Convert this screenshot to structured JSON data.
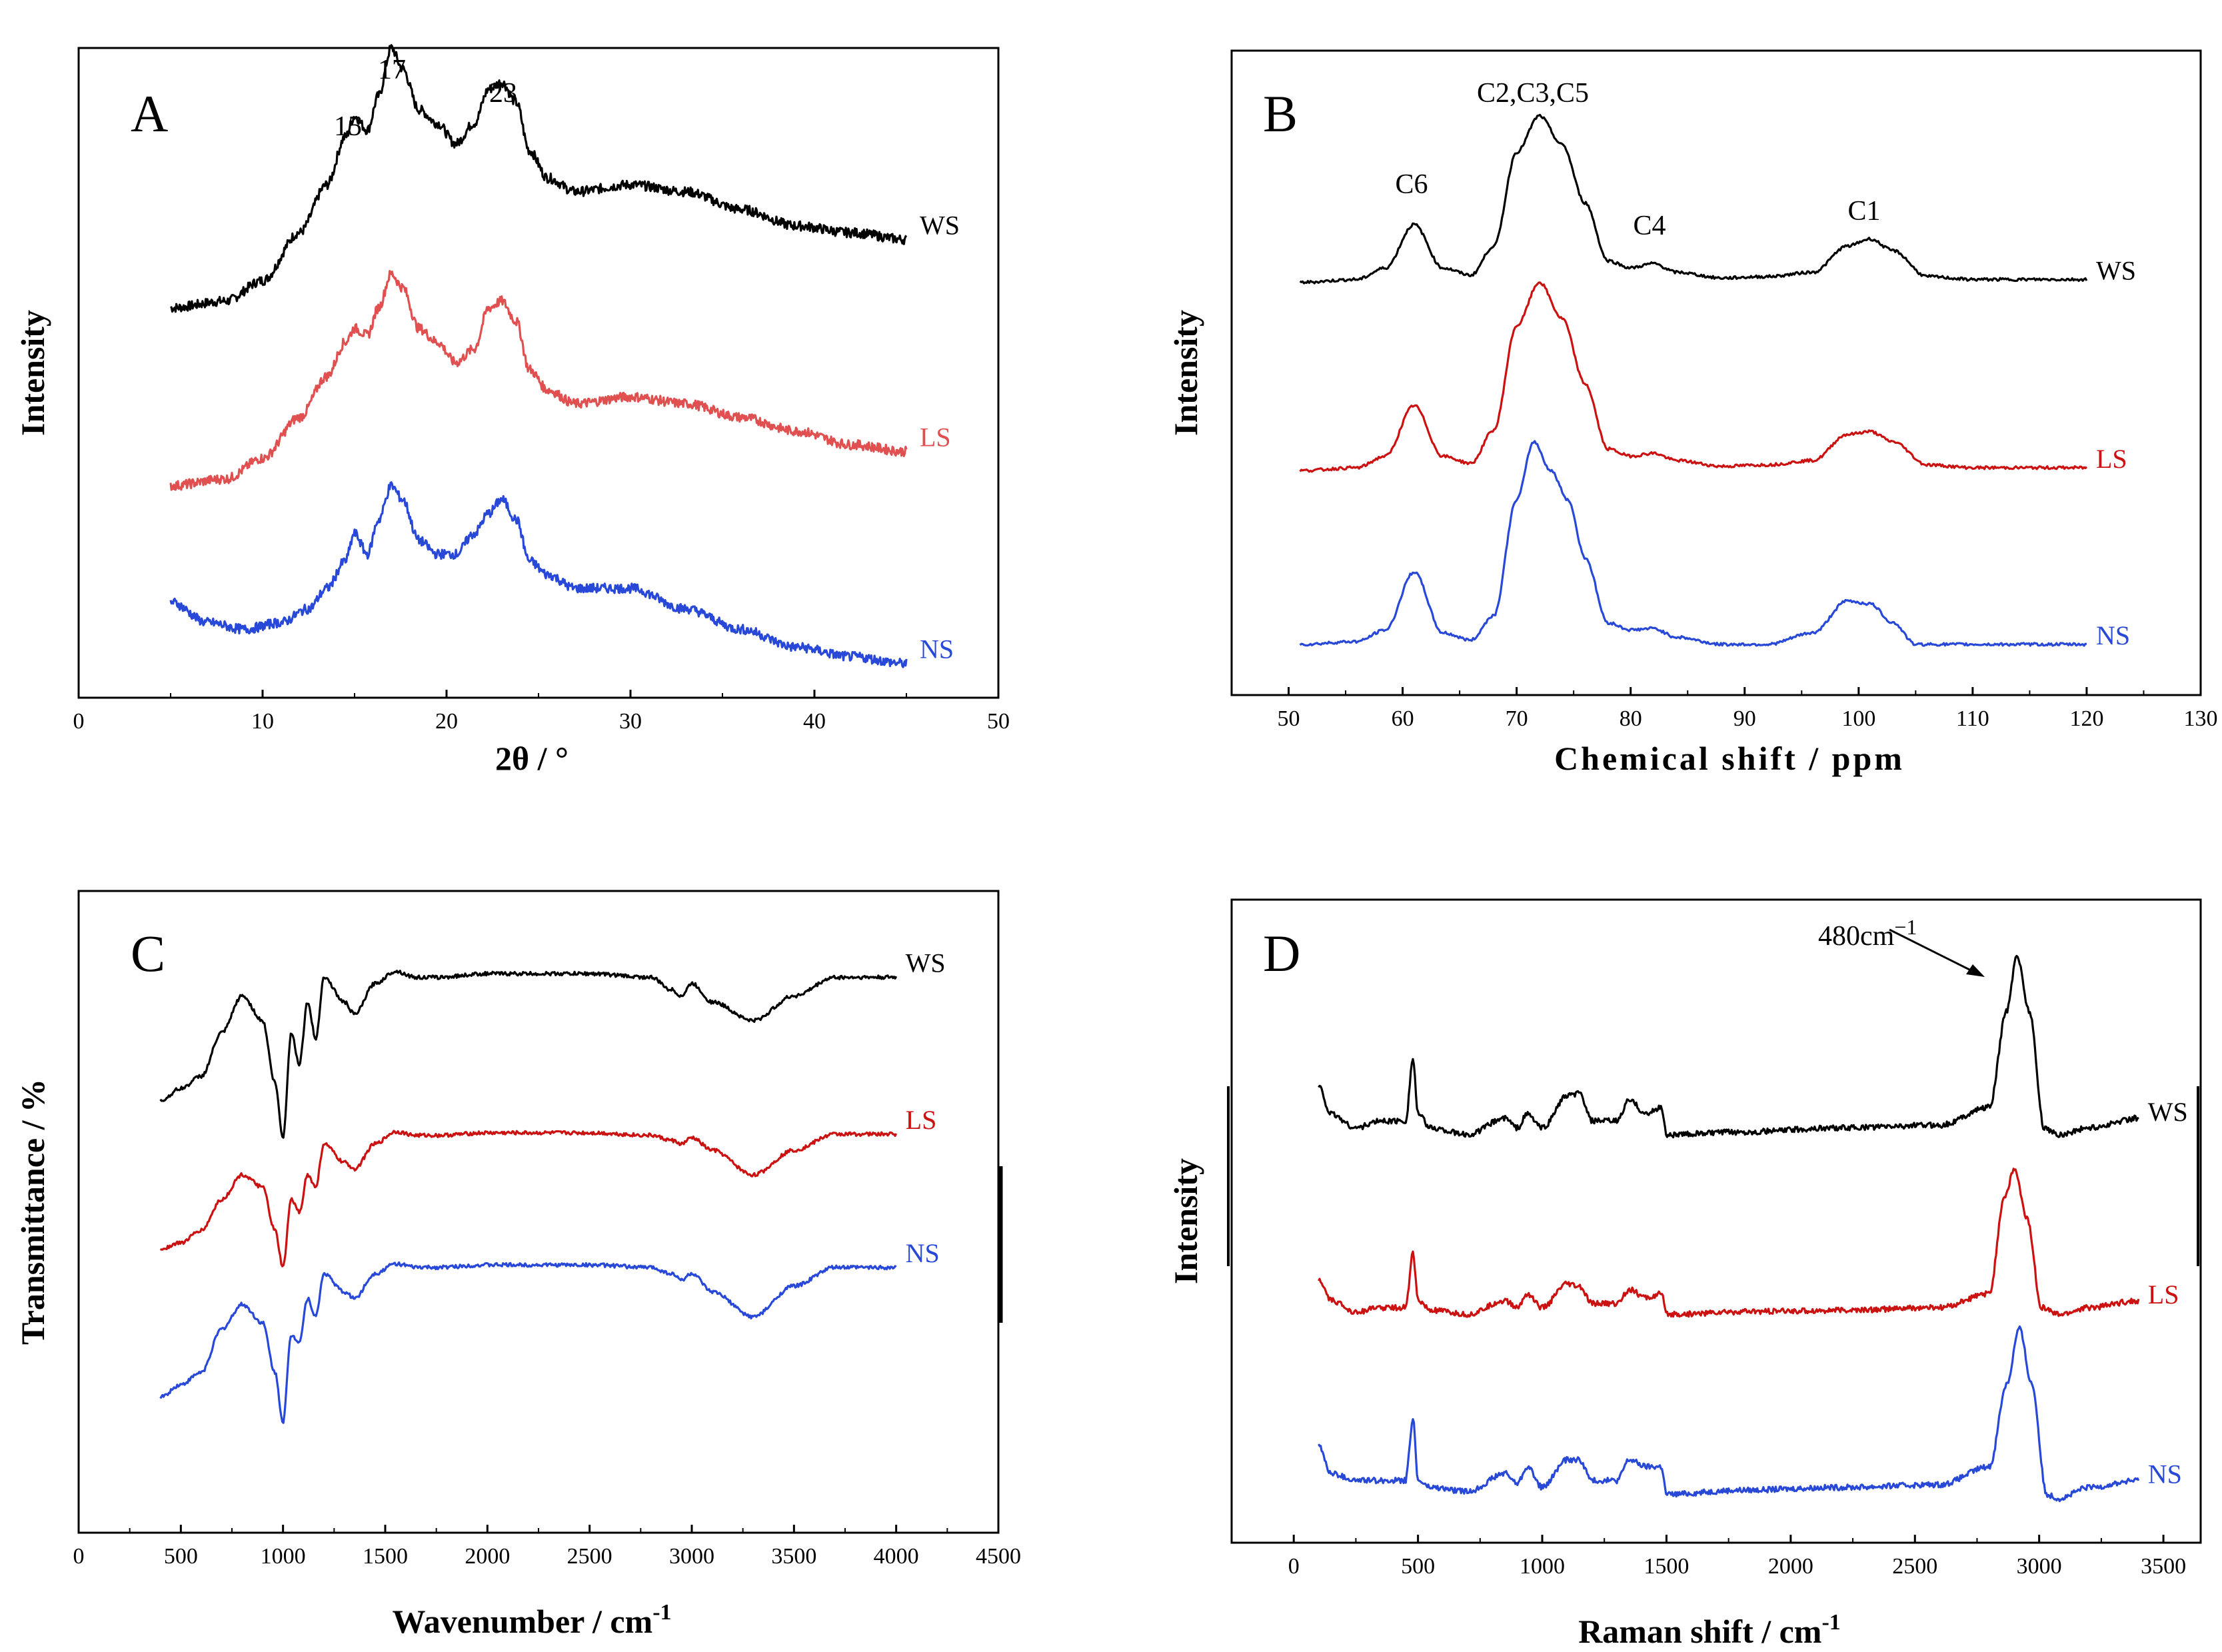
{
  "chart_data": [
    {
      "type": "line",
      "panel": "A",
      "xlabel": "2θ / °",
      "ylabel": "Intensity",
      "xlim": [
        0,
        50
      ],
      "xticks": [
        0,
        10,
        20,
        30,
        40,
        50
      ],
      "annotations": [
        "15",
        "17",
        "23"
      ],
      "series": [
        {
          "name": "WS",
          "color": "#000000",
          "offset": 2.6,
          "x": [
            5,
            8,
            10,
            12,
            13.5,
            14.5,
            15,
            15.7,
            16.3,
            17,
            17.6,
            18.5,
            19.5,
            20.5,
            21.5,
            22.3,
            23,
            23.8,
            24.5,
            25.5,
            27,
            30,
            33,
            36,
            39,
            42,
            45
          ],
          "y": [
            0,
            0.05,
            0.2,
            0.55,
            0.9,
            1.25,
            1.4,
            1.3,
            1.55,
            1.9,
            1.75,
            1.45,
            1.35,
            1.2,
            1.35,
            1.6,
            1.65,
            1.5,
            1.15,
            0.95,
            0.85,
            0.9,
            0.85,
            0.72,
            0.6,
            0.55,
            0.5
          ]
        },
        {
          "name": "LS",
          "color": "#e05050",
          "offset": 1.3,
          "x": [
            5,
            8,
            10,
            12,
            13.5,
            14.5,
            15,
            15.7,
            16.3,
            17,
            17.6,
            18.5,
            19.5,
            20.5,
            21.5,
            22.3,
            23,
            23.8,
            24.5,
            25.5,
            27,
            30,
            33,
            36,
            39,
            42,
            45
          ],
          "y": [
            0,
            0.05,
            0.2,
            0.5,
            0.8,
            1.05,
            1.15,
            1.1,
            1.3,
            1.55,
            1.45,
            1.15,
            1.05,
            0.9,
            1.0,
            1.3,
            1.35,
            1.2,
            0.85,
            0.7,
            0.6,
            0.65,
            0.6,
            0.5,
            0.4,
            0.3,
            0.25
          ]
        },
        {
          "name": "NS",
          "color": "#2848d8",
          "offset": 0,
          "x": [
            5,
            7,
            9,
            11,
            12.5,
            13.5,
            14.5,
            15,
            15.7,
            16.3,
            17,
            17.6,
            18.5,
            19.5,
            20.5,
            21.5,
            22.3,
            23,
            23.8,
            24.5,
            25.5,
            27,
            30,
            33,
            36,
            39,
            42,
            45
          ],
          "y": [
            0.45,
            0.3,
            0.25,
            0.3,
            0.4,
            0.55,
            0.75,
            0.95,
            0.8,
            1.05,
            1.3,
            1.2,
            0.9,
            0.8,
            0.8,
            0.95,
            1.1,
            1.2,
            1.05,
            0.75,
            0.65,
            0.55,
            0.55,
            0.4,
            0.25,
            0.12,
            0.05,
            0.0
          ]
        }
      ]
    },
    {
      "type": "line",
      "panel": "B",
      "xlabel": "Chemical shift / ppm",
      "ylabel": "Intensity",
      "xlim": [
        45,
        130
      ],
      "xticks": [
        50,
        60,
        70,
        80,
        90,
        100,
        110,
        120,
        130
      ],
      "annotations": [
        "C2,C3,C5",
        "C6",
        "C4",
        "C1"
      ],
      "series": [
        {
          "name": "WS",
          "color": "#000000",
          "offset": 2.5,
          "x": [
            51,
            56,
            58.5,
            61,
            63.5,
            66,
            68,
            70,
            72,
            74,
            76,
            78,
            80,
            82,
            84,
            88,
            92,
            96,
            99,
            101,
            103,
            106,
            110,
            120
          ],
          "y": [
            0,
            0.02,
            0.1,
            0.4,
            0.1,
            0.05,
            0.25,
            0.9,
            1.15,
            0.95,
            0.55,
            0.15,
            0.1,
            0.13,
            0.07,
            0.03,
            0.04,
            0.07,
            0.25,
            0.3,
            0.22,
            0.04,
            0.02,
            0.02
          ]
        },
        {
          "name": "LS",
          "color": "#cc1111",
          "offset": 1.2,
          "x": [
            51,
            56,
            58.5,
            61,
            63.5,
            66,
            68,
            70,
            72,
            74,
            76,
            78,
            80,
            82,
            84,
            88,
            92,
            96,
            99,
            101,
            103,
            106,
            110,
            120
          ],
          "y": [
            0,
            0.02,
            0.1,
            0.45,
            0.1,
            0.05,
            0.28,
            1.0,
            1.3,
            1.05,
            0.6,
            0.15,
            0.1,
            0.12,
            0.07,
            0.03,
            0.04,
            0.07,
            0.25,
            0.27,
            0.2,
            0.04,
            0.02,
            0.02
          ]
        },
        {
          "name": "NS",
          "color": "#2848d8",
          "offset": 0,
          "x": [
            51,
            56,
            58.5,
            61,
            63.5,
            66,
            68,
            70,
            71.5,
            73,
            74.5,
            76,
            78,
            80,
            82,
            84,
            88,
            92,
            96,
            99,
            101,
            103,
            105,
            110,
            120
          ],
          "y": [
            0,
            0.02,
            0.1,
            0.5,
            0.08,
            0.03,
            0.2,
            1.0,
            1.4,
            1.2,
            1.0,
            0.6,
            0.15,
            0.1,
            0.11,
            0.05,
            0.0,
            0.0,
            0.08,
            0.3,
            0.28,
            0.15,
            0.0,
            0.0,
            0.0
          ]
        }
      ]
    },
    {
      "type": "line",
      "panel": "C",
      "xlabel": "Wavenumber / cm-1",
      "ylabel": "Transmittance / %",
      "xlim": [
        0,
        4500
      ],
      "xticks": [
        0,
        500,
        1000,
        1500,
        2000,
        2500,
        3000,
        3500,
        4000,
        4500
      ],
      "series": [
        {
          "name": "WS",
          "color": "#000000",
          "offset": 2.4,
          "x": [
            400,
            500,
            600,
            700,
            800,
            900,
            960,
            1000,
            1040,
            1080,
            1120,
            1160,
            1200,
            1300,
            1350,
            1450,
            1550,
            1650,
            1750,
            2000,
            2500,
            2800,
            2900,
            2950,
            3000,
            3100,
            3300,
            3500,
            3700,
            4000
          ],
          "y": [
            0,
            0.1,
            0.2,
            0.55,
            0.85,
            0.65,
            0.15,
            -0.3,
            0.55,
            0.3,
            0.8,
            0.5,
            1.0,
            0.8,
            0.7,
            0.95,
            1.05,
            1.0,
            1.0,
            1.03,
            1.03,
            1.0,
            0.9,
            0.85,
            0.95,
            0.8,
            0.65,
            0.85,
            1.0,
            1.0
          ]
        },
        {
          "name": "LS",
          "color": "#cc1111",
          "offset": 1.2,
          "x": [
            400,
            500,
            600,
            700,
            800,
            900,
            960,
            1000,
            1040,
            1080,
            1120,
            1160,
            1200,
            1300,
            1350,
            1450,
            1550,
            1650,
            1750,
            2000,
            2500,
            2800,
            2900,
            2950,
            3000,
            3100,
            3300,
            3500,
            3700,
            4000
          ],
          "y": [
            0,
            0.05,
            0.15,
            0.4,
            0.6,
            0.5,
            0.15,
            -0.15,
            0.4,
            0.3,
            0.6,
            0.5,
            0.85,
            0.7,
            0.65,
            0.85,
            0.95,
            0.92,
            0.92,
            0.94,
            0.94,
            0.92,
            0.88,
            0.85,
            0.9,
            0.8,
            0.6,
            0.8,
            0.93,
            0.93
          ]
        },
        {
          "name": "NS",
          "color": "#2848d8",
          "offset": 0,
          "x": [
            400,
            500,
            600,
            700,
            800,
            900,
            960,
            1000,
            1040,
            1080,
            1120,
            1160,
            1200,
            1300,
            1350,
            1450,
            1550,
            1650,
            1750,
            2000,
            2500,
            2800,
            2900,
            2950,
            3000,
            3100,
            3300,
            3500,
            3700,
            4000
          ],
          "y": [
            0,
            0.1,
            0.2,
            0.55,
            0.75,
            0.6,
            0.2,
            -0.2,
            0.5,
            0.45,
            0.8,
            0.65,
            1.0,
            0.85,
            0.8,
            1.0,
            1.08,
            1.05,
            1.05,
            1.07,
            1.07,
            1.05,
            1.0,
            0.95,
            1.0,
            0.85,
            0.65,
            0.9,
            1.05,
            1.05
          ]
        }
      ]
    },
    {
      "type": "line",
      "panel": "D",
      "xlabel": "Raman shift / cm-1",
      "ylabel": "Intensity",
      "xlim": [
        -250,
        3650
      ],
      "xticks": [
        0,
        500,
        1000,
        1500,
        2000,
        2500,
        3000,
        3500
      ],
      "annotation": "480cm-1",
      "series": [
        {
          "name": "WS",
          "color": "#000000",
          "offset": 2.6,
          "x": [
            100,
            150,
            250,
            350,
            450,
            480,
            500,
            550,
            700,
            850,
            900,
            940,
            1000,
            1100,
            1150,
            1200,
            1300,
            1350,
            1420,
            1480,
            1500,
            1800,
            2200,
            2600,
            2800,
            2870,
            2910,
            2960,
            3020,
            3080,
            3200,
            3400
          ],
          "y": [
            0.35,
            0.15,
            0.05,
            0.1,
            0.1,
            0.55,
            0.15,
            0.05,
            0.0,
            0.12,
            0.05,
            0.15,
            0.05,
            0.28,
            0.3,
            0.1,
            0.1,
            0.25,
            0.15,
            0.2,
            0.0,
            0.02,
            0.05,
            0.07,
            0.2,
            0.9,
            1.3,
            0.9,
            0.05,
            0.0,
            0.05,
            0.12
          ]
        },
        {
          "name": "LS",
          "color": "#cc1111",
          "offset": 1.3,
          "x": [
            100,
            150,
            250,
            350,
            450,
            480,
            500,
            550,
            700,
            850,
            900,
            940,
            1000,
            1100,
            1150,
            1200,
            1300,
            1350,
            1420,
            1480,
            1500,
            1800,
            2200,
            2600,
            2800,
            2860,
            2900,
            2950,
            3010,
            3080,
            3200,
            3400
          ],
          "y": [
            0.25,
            0.1,
            0.02,
            0.05,
            0.05,
            0.45,
            0.1,
            0.03,
            0.0,
            0.1,
            0.05,
            0.15,
            0.05,
            0.22,
            0.2,
            0.08,
            0.08,
            0.18,
            0.12,
            0.15,
            0.0,
            0.02,
            0.03,
            0.05,
            0.15,
            0.85,
            1.05,
            0.7,
            0.05,
            0.0,
            0.05,
            0.1
          ]
        },
        {
          "name": "NS",
          "color": "#2848d8",
          "offset": 0,
          "x": [
            100,
            150,
            250,
            350,
            450,
            480,
            500,
            550,
            700,
            850,
            900,
            940,
            1000,
            1100,
            1150,
            1200,
            1300,
            1350,
            1420,
            1480,
            1500,
            1800,
            2200,
            2600,
            2800,
            2870,
            2920,
            2970,
            3030,
            3080,
            3200,
            3400
          ],
          "y": [
            0.35,
            0.15,
            0.1,
            0.1,
            0.1,
            0.55,
            0.1,
            0.05,
            0.02,
            0.15,
            0.08,
            0.2,
            0.05,
            0.25,
            0.25,
            0.1,
            0.1,
            0.25,
            0.2,
            0.2,
            0.0,
            0.03,
            0.05,
            0.07,
            0.2,
            0.8,
            1.2,
            0.8,
            0.0,
            -0.03,
            0.05,
            0.1
          ]
        }
      ]
    }
  ],
  "figure": {
    "panels": {
      "A": {
        "letter": "A",
        "ann1": "15",
        "ann2": "17",
        "ann3": "23"
      },
      "B": {
        "letter": "B",
        "ann1": "C2,C3,C5",
        "ann2": "C6",
        "ann3": "C4",
        "ann4": "C1"
      },
      "C": {
        "letter": "C",
        "xlabel_main": "Wavenumber / cm",
        "xlabel_sup": "-1"
      },
      "D": {
        "letter": "D",
        "ann_main": "480cm",
        "ann_sup": "−1",
        "xlabel_main": "Raman shift / cm",
        "xlabel_sup": "-1"
      }
    }
  }
}
